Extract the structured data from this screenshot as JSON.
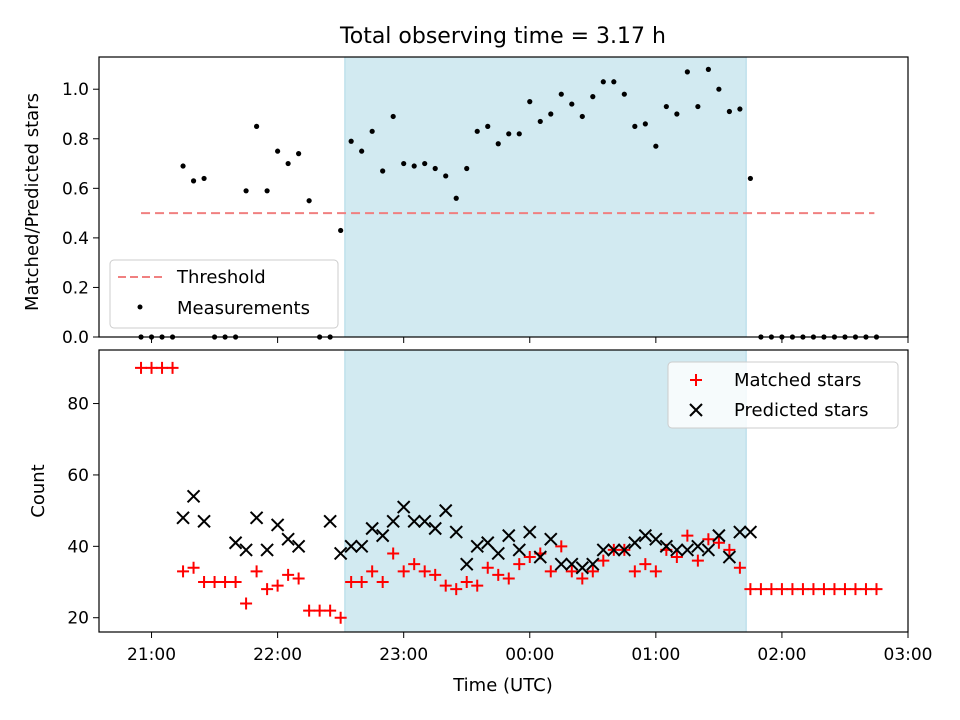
{
  "figure": {
    "title": "Total observing time = 3.17 h",
    "xlabel": "Time (UTC)"
  },
  "chart_data": [
    {
      "type": "scatter",
      "panel": "top",
      "ylabel": "Matched/Predicted stars",
      "xlim": [
        "20:35",
        "03:00"
      ],
      "ylim": [
        0,
        1.13
      ],
      "yticks": [
        "0.0",
        "0.2",
        "0.4",
        "0.6",
        "0.8",
        "1.0"
      ],
      "shaded_interval": [
        "22:32",
        "01:43"
      ],
      "shade_color": "#add8e6",
      "legend_position": "lower-left",
      "threshold": {
        "name": "Threshold",
        "y": 0.5,
        "x_range": [
          "20:55",
          "02:44"
        ],
        "color": "#f08080",
        "style": "dashed"
      },
      "series": [
        {
          "name": "Measurements",
          "color": "#000000",
          "x": [
            "20:55",
            "21:00",
            "21:05",
            "21:10",
            "21:15",
            "21:20",
            "21:25",
            "21:30",
            "21:35",
            "21:40",
            "21:45",
            "21:50",
            "21:55",
            "22:00",
            "22:05",
            "22:10",
            "22:15",
            "22:20",
            "22:25",
            "22:30",
            "22:35",
            "22:40",
            "22:45",
            "22:50",
            "22:55",
            "23:00",
            "23:05",
            "23:10",
            "23:15",
            "23:20",
            "23:25",
            "23:30",
            "23:35",
            "23:40",
            "23:45",
            "23:50",
            "23:55",
            "00:00",
            "00:05",
            "00:10",
            "00:15",
            "00:20",
            "00:25",
            "00:30",
            "00:35",
            "00:40",
            "00:45",
            "00:50",
            "00:55",
            "01:00",
            "01:05",
            "01:10",
            "01:15",
            "01:20",
            "01:25",
            "01:30",
            "01:35",
            "01:40",
            "01:45",
            "01:50",
            "01:55",
            "02:00",
            "02:05",
            "02:10",
            "02:15",
            "02:20",
            "02:25",
            "02:30",
            "02:35",
            "02:40",
            "02:45"
          ],
          "y": [
            0,
            0,
            0,
            0,
            0.69,
            0.63,
            0.64,
            0,
            0,
            0,
            0.59,
            0.85,
            0.59,
            0.75,
            0.7,
            0.74,
            0.55,
            0,
            0,
            0.43,
            0.79,
            0.75,
            0.83,
            0.67,
            0.89,
            0.7,
            0.69,
            0.7,
            0.68,
            0.65,
            0.56,
            0.68,
            0.83,
            0.85,
            0.78,
            0.82,
            0.82,
            0.95,
            0.87,
            0.9,
            0.98,
            0.94,
            0.89,
            0.97,
            1.03,
            1.03,
            0.98,
            0.85,
            0.86,
            0.77,
            0.93,
            0.9,
            1.07,
            0.93,
            1.08,
            1.0,
            0.91,
            0.92,
            0.64,
            0,
            0,
            0,
            0,
            0,
            0,
            0,
            0,
            0,
            0,
            0,
            0
          ]
        }
      ]
    },
    {
      "type": "scatter",
      "panel": "bottom",
      "ylabel": "Count",
      "xlim": [
        "20:35",
        "03:00"
      ],
      "ylim": [
        16,
        95
      ],
      "yticks": [
        "20",
        "40",
        "60",
        "80"
      ],
      "xticks": [
        "21:00",
        "22:00",
        "23:00",
        "00:00",
        "01:00",
        "02:00",
        "03:00"
      ],
      "shaded_interval": [
        "22:32",
        "01:43"
      ],
      "shade_color": "#add8e6",
      "legend_position": "upper-right",
      "series": [
        {
          "name": "Matched stars",
          "marker": "plus",
          "color": "#ff0000",
          "x": [
            "20:55",
            "21:00",
            "21:05",
            "21:10",
            "21:15",
            "21:20",
            "21:25",
            "21:30",
            "21:35",
            "21:40",
            "21:45",
            "21:50",
            "21:55",
            "22:00",
            "22:05",
            "22:10",
            "22:15",
            "22:20",
            "22:25",
            "22:30",
            "22:35",
            "22:40",
            "22:45",
            "22:50",
            "22:55",
            "23:00",
            "23:05",
            "23:10",
            "23:15",
            "23:20",
            "23:25",
            "23:30",
            "23:35",
            "23:40",
            "23:45",
            "23:50",
            "23:55",
            "00:00",
            "00:05",
            "00:10",
            "00:15",
            "00:20",
            "00:25",
            "00:30",
            "00:35",
            "00:40",
            "00:45",
            "00:50",
            "00:55",
            "01:00",
            "01:05",
            "01:10",
            "01:15",
            "01:20",
            "01:25",
            "01:30",
            "01:35",
            "01:40",
            "01:45",
            "01:50",
            "01:55",
            "02:00",
            "02:05",
            "02:10",
            "02:15",
            "02:20",
            "02:25",
            "02:30",
            "02:35",
            "02:40",
            "02:45"
          ],
          "y": [
            90,
            90,
            90,
            90,
            33,
            34,
            30,
            30,
            30,
            30,
            24,
            33,
            28,
            29,
            32,
            31,
            22,
            22,
            22,
            20,
            30,
            30,
            33,
            30,
            38,
            33,
            35,
            33,
            32,
            29,
            28,
            30,
            29,
            34,
            32,
            31,
            35,
            37,
            38,
            33,
            40,
            33,
            31,
            33,
            36,
            39,
            39,
            33,
            35,
            33,
            39,
            37,
            43,
            36,
            42,
            41,
            39,
            34,
            28,
            28,
            28,
            28,
            28,
            28,
            28,
            28,
            28,
            28,
            28,
            28,
            28
          ]
        },
        {
          "name": "Predicted stars",
          "marker": "x",
          "color": "#000000",
          "x": [
            "21:15",
            "21:20",
            "21:25",
            "21:40",
            "21:45",
            "21:50",
            "21:55",
            "22:00",
            "22:05",
            "22:10",
            "22:25",
            "22:30",
            "22:35",
            "22:40",
            "22:45",
            "22:50",
            "22:55",
            "23:00",
            "23:05",
            "23:10",
            "23:15",
            "23:20",
            "23:25",
            "23:30",
            "23:35",
            "23:40",
            "23:45",
            "23:50",
            "23:55",
            "00:00",
            "00:05",
            "00:10",
            "00:15",
            "00:20",
            "00:25",
            "00:30",
            "00:35",
            "00:40",
            "00:45",
            "00:50",
            "00:55",
            "01:00",
            "01:05",
            "01:10",
            "01:15",
            "01:20",
            "01:25",
            "01:30",
            "01:35",
            "01:40",
            "01:45"
          ],
          "y": [
            48,
            54,
            47,
            41,
            39,
            48,
            39,
            46,
            42,
            40,
            47,
            38,
            40,
            40,
            45,
            43,
            47,
            51,
            47,
            47,
            45,
            50,
            44,
            35,
            40,
            41,
            38,
            43,
            39,
            44,
            37,
            42,
            35,
            35,
            34,
            35,
            39,
            39,
            39,
            41,
            43,
            42,
            40,
            39,
            39,
            40,
            39,
            43,
            37,
            44,
            44
          ]
        }
      ]
    }
  ]
}
